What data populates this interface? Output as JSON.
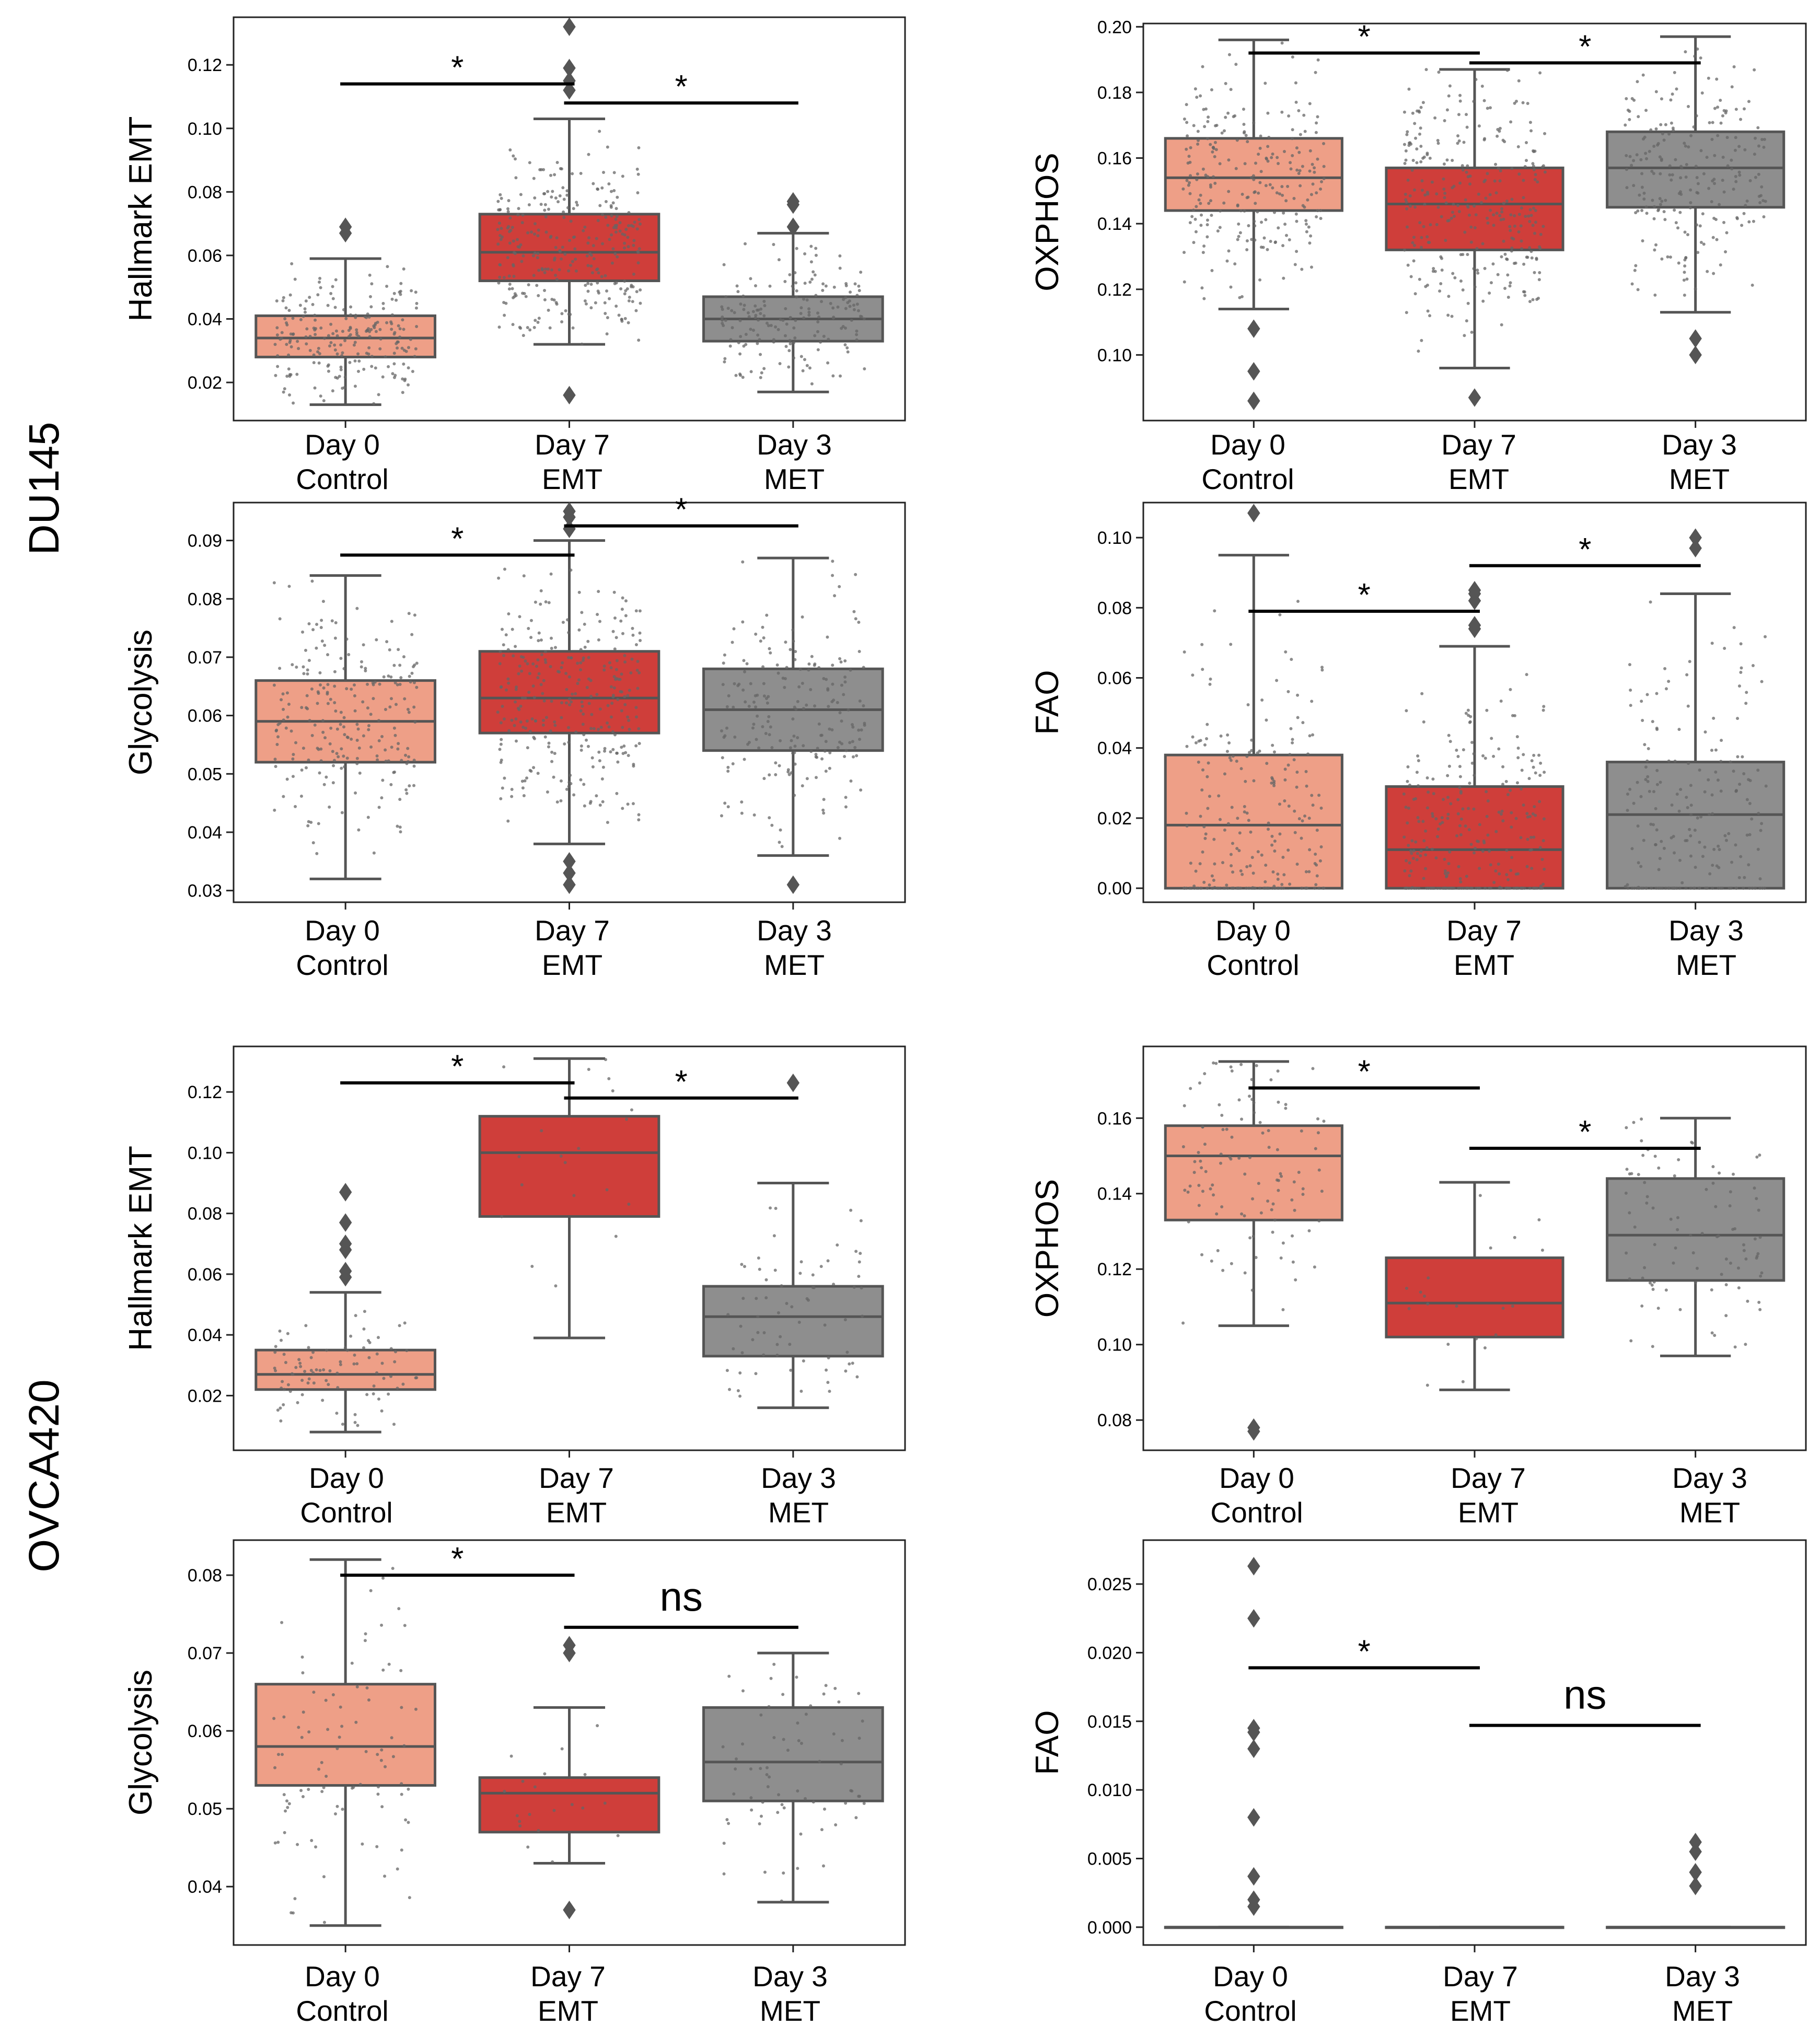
{
  "row_labels": [
    "DU145",
    "OVCA420"
  ],
  "colors": {
    "control": "#ee9f87",
    "emt": "#cf3e3a",
    "met": "#8e8e8e",
    "line": "#555555",
    "sig": "#000000",
    "jitter": "#666666"
  },
  "chart_data": [
    {
      "type": "box",
      "cell_line": "DU145",
      "ylabel": "Hallmark EMT",
      "categories": [
        "Day 0\nControl",
        "Day 7\nEMT",
        "Day 3\nMET"
      ],
      "ylim": [
        0.008,
        0.135
      ],
      "yticks": [
        0.02,
        0.04,
        0.06,
        0.08,
        0.1,
        0.12
      ],
      "ytick_labels": [
        "0.02",
        "0.04",
        "0.06",
        "0.08",
        "0.10",
        "0.12"
      ],
      "boxes": [
        {
          "whislo": 0.013,
          "q1": 0.028,
          "med": 0.034,
          "q3": 0.041,
          "whishi": 0.059,
          "fliers": [
            0.067,
            0.069
          ],
          "n_points": 220
        },
        {
          "whislo": 0.032,
          "q1": 0.052,
          "med": 0.061,
          "q3": 0.073,
          "whishi": 0.103,
          "fliers": [
            0.016,
            0.112,
            0.115,
            0.119,
            0.132
          ],
          "n_points": 300
        },
        {
          "whislo": 0.017,
          "q1": 0.033,
          "med": 0.04,
          "q3": 0.047,
          "whishi": 0.067,
          "fliers": [
            0.069,
            0.076,
            0.077
          ],
          "n_points": 180
        }
      ],
      "significance": [
        {
          "from": 0,
          "to": 1,
          "y": 0.114,
          "label": "*"
        },
        {
          "from": 1,
          "to": 2,
          "y": 0.108,
          "label": "*"
        }
      ]
    },
    {
      "type": "box",
      "cell_line": "DU145",
      "ylabel": "OXPHOS",
      "categories": [
        "Day 0\nControl",
        "Day 7\nEMT",
        "Day 3\nMET"
      ],
      "ylim": [
        0.08,
        0.201
      ],
      "yticks": [
        0.1,
        0.12,
        0.14,
        0.16,
        0.18,
        0.2
      ],
      "ytick_labels": [
        "0.10",
        "0.12",
        "0.14",
        "0.16",
        "0.18",
        "0.20"
      ],
      "boxes": [
        {
          "whislo": 0.114,
          "q1": 0.144,
          "med": 0.154,
          "q3": 0.166,
          "whishi": 0.196,
          "fliers": [
            0.086,
            0.095,
            0.108
          ],
          "n_points": 240
        },
        {
          "whislo": 0.096,
          "q1": 0.132,
          "med": 0.146,
          "q3": 0.157,
          "whishi": 0.187,
          "fliers": [
            0.087
          ],
          "n_points": 300
        },
        {
          "whislo": 0.113,
          "q1": 0.145,
          "med": 0.157,
          "q3": 0.168,
          "whishi": 0.197,
          "fliers": [
            0.1,
            0.105
          ],
          "n_points": 220
        }
      ],
      "significance": [
        {
          "from": 0,
          "to": 1,
          "y": 0.192,
          "label": "*"
        },
        {
          "from": 1,
          "to": 2,
          "y": 0.189,
          "label": "*"
        }
      ]
    },
    {
      "type": "box",
      "cell_line": "DU145",
      "ylabel": "Glycolysis",
      "categories": [
        "Day 0\nControl",
        "Day 7\nEMT",
        "Day 3\nMET"
      ],
      "ylim": [
        0.028,
        0.0965
      ],
      "yticks": [
        0.03,
        0.04,
        0.05,
        0.06,
        0.07,
        0.08,
        0.09
      ],
      "ytick_labels": [
        "0.03",
        "0.04",
        "0.05",
        "0.06",
        "0.07",
        "0.08",
        "0.09"
      ],
      "boxes": [
        {
          "whislo": 0.032,
          "q1": 0.052,
          "med": 0.059,
          "q3": 0.066,
          "whishi": 0.084,
          "fliers": [],
          "n_points": 230
        },
        {
          "whislo": 0.038,
          "q1": 0.057,
          "med": 0.063,
          "q3": 0.071,
          "whishi": 0.09,
          "fliers": [
            0.031,
            0.033,
            0.035,
            0.092,
            0.094,
            0.095
          ],
          "n_points": 300
        },
        {
          "whislo": 0.036,
          "q1": 0.054,
          "med": 0.061,
          "q3": 0.068,
          "whishi": 0.087,
          "fliers": [
            0.031
          ],
          "n_points": 200
        }
      ],
      "significance": [
        {
          "from": 0,
          "to": 1,
          "y": 0.0875,
          "label": "*"
        },
        {
          "from": 1,
          "to": 2,
          "y": 0.0925,
          "label": "*"
        }
      ]
    },
    {
      "type": "box",
      "cell_line": "DU145",
      "ylabel": "FAO",
      "categories": [
        "Day 0\nControl",
        "Day 7\nEMT",
        "Day 3\nMET"
      ],
      "ylim": [
        -0.004,
        0.11
      ],
      "yticks": [
        0.0,
        0.02,
        0.04,
        0.06,
        0.08,
        0.1
      ],
      "ytick_labels": [
        "0.00",
        "0.02",
        "0.04",
        "0.06",
        "0.08",
        "0.10"
      ],
      "boxes": [
        {
          "whislo": 0.0,
          "q1": 0.0,
          "med": 0.018,
          "q3": 0.038,
          "whishi": 0.095,
          "fliers": [
            0.107
          ],
          "n_points": 230
        },
        {
          "whislo": 0.0,
          "q1": 0.0,
          "med": 0.011,
          "q3": 0.029,
          "whishi": 0.069,
          "fliers": [
            0.074,
            0.075,
            0.082,
            0.084,
            0.085
          ],
          "n_points": 280
        },
        {
          "whislo": 0.0,
          "q1": 0.0,
          "med": 0.021,
          "q3": 0.036,
          "whishi": 0.084,
          "fliers": [
            0.097,
            0.1
          ],
          "n_points": 200
        }
      ],
      "significance": [
        {
          "from": 0,
          "to": 1,
          "y": 0.079,
          "label": "*"
        },
        {
          "from": 1,
          "to": 2,
          "y": 0.092,
          "label": "*"
        }
      ]
    },
    {
      "type": "box",
      "cell_line": "OVCA420",
      "ylabel": "Hallmark EMT",
      "categories": [
        "Day 0\nControl",
        "Day 7\nEMT",
        "Day 3\nMET"
      ],
      "ylim": [
        0.002,
        0.135
      ],
      "yticks": [
        0.02,
        0.04,
        0.06,
        0.08,
        0.1,
        0.12
      ],
      "ytick_labels": [
        "0.02",
        "0.04",
        "0.06",
        "0.08",
        "0.10",
        "0.12"
      ],
      "boxes": [
        {
          "whislo": 0.008,
          "q1": 0.022,
          "med": 0.027,
          "q3": 0.035,
          "whishi": 0.054,
          "fliers": [
            0.059,
            0.061,
            0.068,
            0.07,
            0.077,
            0.087
          ],
          "n_points": 90
        },
        {
          "whislo": 0.039,
          "q1": 0.079,
          "med": 0.1,
          "q3": 0.112,
          "whishi": 0.131,
          "fliers": [],
          "n_points": 20
        },
        {
          "whislo": 0.016,
          "q1": 0.033,
          "med": 0.046,
          "q3": 0.056,
          "whishi": 0.09,
          "fliers": [
            0.123
          ],
          "n_points": 70
        }
      ],
      "significance": [
        {
          "from": 0,
          "to": 1,
          "y": 0.123,
          "label": "*"
        },
        {
          "from": 1,
          "to": 2,
          "y": 0.118,
          "label": "*"
        }
      ]
    },
    {
      "type": "box",
      "cell_line": "OVCA420",
      "ylabel": "OXPHOS",
      "categories": [
        "Day 0\nControl",
        "Day 7\nEMT",
        "Day 3\nMET"
      ],
      "ylim": [
        0.072,
        0.179
      ],
      "yticks": [
        0.08,
        0.1,
        0.12,
        0.14,
        0.16
      ],
      "ytick_labels": [
        "0.08",
        "0.10",
        "0.12",
        "0.14",
        "0.16"
      ],
      "boxes": [
        {
          "whislo": 0.105,
          "q1": 0.133,
          "med": 0.15,
          "q3": 0.158,
          "whishi": 0.175,
          "fliers": [
            0.077,
            0.078
          ],
          "n_points": 110
        },
        {
          "whislo": 0.088,
          "q1": 0.102,
          "med": 0.111,
          "q3": 0.123,
          "whishi": 0.143,
          "fliers": [],
          "n_points": 20
        },
        {
          "whislo": 0.097,
          "q1": 0.117,
          "med": 0.129,
          "q3": 0.144,
          "whishi": 0.16,
          "fliers": [],
          "n_points": 90
        }
      ],
      "significance": [
        {
          "from": 0,
          "to": 1,
          "y": 0.168,
          "label": "*"
        },
        {
          "from": 1,
          "to": 2,
          "y": 0.152,
          "label": "*"
        }
      ]
    },
    {
      "type": "box",
      "cell_line": "OVCA420",
      "ylabel": "Glycolysis",
      "categories": [
        "Day 0\nControl",
        "Day 7\nEMT",
        "Day 3\nMET"
      ],
      "ylim": [
        0.0325,
        0.0845
      ],
      "yticks": [
        0.04,
        0.05,
        0.06,
        0.07,
        0.08
      ],
      "ytick_labels": [
        "0.04",
        "0.05",
        "0.06",
        "0.07",
        "0.08"
      ],
      "boxes": [
        {
          "whislo": 0.035,
          "q1": 0.053,
          "med": 0.058,
          "q3": 0.066,
          "whishi": 0.082,
          "fliers": [],
          "n_points": 90
        },
        {
          "whislo": 0.043,
          "q1": 0.047,
          "med": 0.052,
          "q3": 0.054,
          "whishi": 0.063,
          "fliers": [
            0.037,
            0.07,
            0.071
          ],
          "n_points": 20
        },
        {
          "whislo": 0.038,
          "q1": 0.051,
          "med": 0.056,
          "q3": 0.063,
          "whishi": 0.07,
          "fliers": [],
          "n_points": 70
        }
      ],
      "significance": [
        {
          "from": 0,
          "to": 1,
          "y": 0.08,
          "label": "*"
        },
        {
          "from": 1,
          "to": 2,
          "y": 0.0733,
          "label": "ns"
        }
      ]
    },
    {
      "type": "box",
      "cell_line": "OVCA420",
      "ylabel": "FAO",
      "categories": [
        "Day 0\nControl",
        "Day 7\nEMT",
        "Day 3\nMET"
      ],
      "ylim": [
        -0.0013,
        0.0282
      ],
      "yticks": [
        0.0,
        0.005,
        0.01,
        0.015,
        0.02,
        0.025
      ],
      "ytick_labels": [
        "0.000",
        "0.005",
        "0.010",
        "0.015",
        "0.020",
        "0.025"
      ],
      "boxes": [
        {
          "whislo": 0.0,
          "q1": 0.0,
          "med": 0.0,
          "q3": 0.0,
          "whishi": 0.0,
          "fliers": [
            0.0015,
            0.002,
            0.0037,
            0.008,
            0.013,
            0.0142,
            0.0145,
            0.0225,
            0.0263
          ],
          "n_points": 0
        },
        {
          "whislo": 0.0,
          "q1": 0.0,
          "med": 0.0,
          "q3": 0.0,
          "whishi": 0.0,
          "fliers": [],
          "n_points": 0
        },
        {
          "whislo": 0.0,
          "q1": 0.0,
          "med": 0.0,
          "q3": 0.0,
          "whishi": 0.0,
          "fliers": [
            0.003,
            0.004,
            0.0055,
            0.0062
          ],
          "n_points": 0
        }
      ],
      "significance": [
        {
          "from": 0,
          "to": 1,
          "y": 0.0189,
          "label": "*"
        },
        {
          "from": 1,
          "to": 2,
          "y": 0.0147,
          "label": "ns"
        }
      ]
    }
  ]
}
